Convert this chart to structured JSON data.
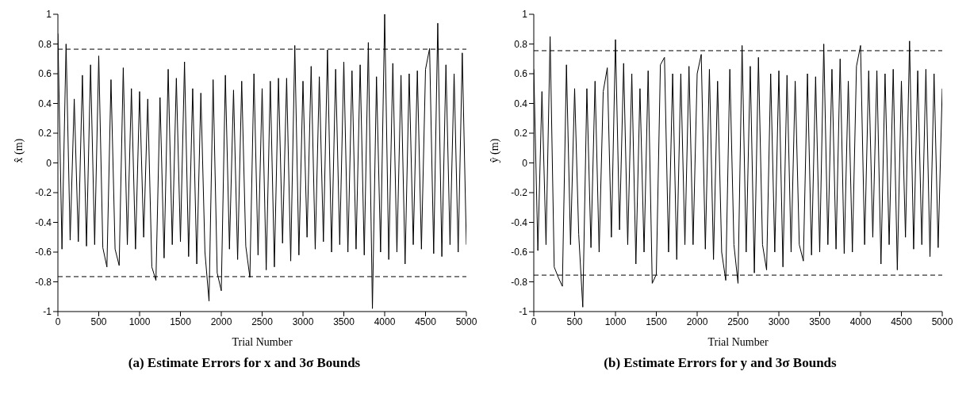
{
  "chart_data": [
    {
      "type": "line",
      "title": "(a) Estimate Errors for x and 3σ Bounds",
      "xlabel": "Trial Number",
      "ylabel": "x̂ (m)",
      "xlim": [
        0,
        5000
      ],
      "xticks": [
        0,
        500,
        1000,
        1500,
        2000,
        2500,
        3000,
        3500,
        4000,
        4500,
        5000
      ],
      "ylim": [
        -1,
        1
      ],
      "yticks": [
        -1,
        -0.8,
        -0.6,
        -0.4,
        -0.2,
        0,
        0.2,
        0.4,
        0.6,
        0.8,
        1
      ],
      "marker": "none",
      "line_style": "solid",
      "series": [
        {
          "color": "#000000",
          "x": [
            0,
            50,
            100,
            150,
            200,
            250,
            300,
            350,
            400,
            450,
            500,
            550,
            600,
            650,
            700,
            750,
            800,
            850,
            900,
            950,
            1000,
            1050,
            1100,
            1150,
            1200,
            1250,
            1300,
            1350,
            1400,
            1450,
            1500,
            1550,
            1600,
            1650,
            1700,
            1750,
            1800,
            1850,
            1900,
            1950,
            2000,
            2050,
            2100,
            2150,
            2200,
            2250,
            2300,
            2350,
            2400,
            2450,
            2500,
            2550,
            2600,
            2650,
            2700,
            2750,
            2800,
            2850,
            2900,
            2950,
            3000,
            3050,
            3100,
            3150,
            3200,
            3250,
            3300,
            3350,
            3400,
            3450,
            3500,
            3550,
            3600,
            3650,
            3700,
            3750,
            3800,
            3850,
            3900,
            3950,
            4000,
            4050,
            4100,
            4150,
            4200,
            4250,
            4300,
            4350,
            4400,
            4450,
            4500,
            4550,
            4600,
            4650,
            4700,
            4750,
            4800,
            4850,
            4900,
            4950,
            5000
          ],
          "values": [
            0.87,
            -0.58,
            0.8,
            -0.52,
            0.43,
            -0.53,
            0.59,
            -0.56,
            0.66,
            -0.55,
            0.72,
            -0.57,
            -0.7,
            0.56,
            -0.58,
            -0.69,
            0.64,
            -0.55,
            0.5,
            -0.58,
            0.48,
            -0.5,
            0.43,
            -0.7,
            -0.79,
            0.44,
            -0.64,
            0.63,
            -0.55,
            0.57,
            -0.53,
            0.68,
            -0.63,
            0.5,
            -0.68,
            0.47,
            -0.6,
            -0.93,
            0.56,
            -0.74,
            -0.86,
            0.59,
            -0.58,
            0.49,
            -0.65,
            0.55,
            -0.56,
            -0.77,
            0.6,
            -0.62,
            0.5,
            -0.72,
            0.55,
            -0.7,
            0.57,
            -0.54,
            0.57,
            -0.66,
            0.79,
            -0.62,
            0.55,
            -0.5,
            0.65,
            -0.58,
            0.58,
            -0.53,
            0.76,
            -0.6,
            0.63,
            -0.55,
            0.68,
            -0.6,
            0.62,
            -0.58,
            0.66,
            -0.62,
            0.81,
            -0.98,
            0.58,
            -0.6,
            1.0,
            -0.65,
            0.67,
            -0.6,
            0.59,
            -0.68,
            0.6,
            -0.55,
            0.62,
            -0.58,
            0.63,
            0.77,
            -0.61,
            0.94,
            -0.63,
            0.66,
            -0.55,
            0.6,
            -0.6,
            0.74,
            -0.55
          ]
        }
      ],
      "ref_lines": [
        {
          "axis": "y",
          "value": 0.765,
          "color": "#000000",
          "line_style": "dashed"
        },
        {
          "axis": "y",
          "value": -0.765,
          "color": "#000000",
          "line_style": "dashed"
        }
      ]
    },
    {
      "type": "line",
      "title": "(b) Estimate Errors for y and 3σ Bounds",
      "xlabel": "Trial Number",
      "ylabel": "ŷ (m)",
      "xlim": [
        0,
        5000
      ],
      "xticks": [
        0,
        500,
        1000,
        1500,
        2000,
        2500,
        3000,
        3500,
        4000,
        4500,
        5000
      ],
      "ylim": [
        -1,
        1
      ],
      "yticks": [
        -1,
        -0.8,
        -0.6,
        -0.4,
        -0.2,
        0,
        0.2,
        0.4,
        0.6,
        0.8,
        1
      ],
      "marker": "none",
      "line_style": "solid",
      "series": [
        {
          "color": "#000000",
          "x": [
            0,
            50,
            100,
            150,
            200,
            250,
            300,
            350,
            400,
            450,
            500,
            550,
            600,
            650,
            700,
            750,
            800,
            850,
            900,
            950,
            1000,
            1050,
            1100,
            1150,
            1200,
            1250,
            1300,
            1350,
            1400,
            1450,
            1500,
            1550,
            1600,
            1650,
            1700,
            1750,
            1800,
            1850,
            1900,
            1950,
            2000,
            2050,
            2100,
            2150,
            2200,
            2250,
            2300,
            2350,
            2400,
            2450,
            2500,
            2550,
            2600,
            2650,
            2700,
            2750,
            2800,
            2850,
            2900,
            2950,
            3000,
            3050,
            3100,
            3150,
            3200,
            3250,
            3300,
            3350,
            3400,
            3450,
            3500,
            3550,
            3600,
            3650,
            3700,
            3750,
            3800,
            3850,
            3900,
            3950,
            4000,
            4050,
            4100,
            4150,
            4200,
            4250,
            4300,
            4350,
            4400,
            4450,
            4500,
            4550,
            4600,
            4650,
            4700,
            4750,
            4800,
            4850,
            4900,
            4950,
            5000
          ],
          "values": [
            0.63,
            -0.59,
            0.48,
            -0.55,
            0.85,
            -0.7,
            -0.77,
            -0.83,
            0.66,
            -0.55,
            0.5,
            -0.48,
            -0.97,
            0.5,
            -0.57,
            0.55,
            -0.6,
            0.48,
            0.64,
            -0.5,
            0.83,
            -0.45,
            0.67,
            -0.55,
            0.6,
            -0.68,
            0.5,
            -0.6,
            0.62,
            -0.81,
            -0.75,
            0.66,
            0.71,
            -0.6,
            0.6,
            -0.65,
            0.6,
            -0.55,
            0.65,
            -0.55,
            0.6,
            0.73,
            -0.58,
            0.63,
            -0.65,
            0.55,
            -0.6,
            -0.79,
            0.63,
            -0.55,
            -0.81,
            0.79,
            -0.6,
            0.65,
            -0.74,
            0.71,
            -0.55,
            -0.72,
            0.6,
            -0.6,
            0.62,
            -0.7,
            0.59,
            -0.6,
            0.55,
            -0.55,
            -0.66,
            0.6,
            -0.62,
            0.58,
            -0.6,
            0.8,
            -0.55,
            0.63,
            -0.58,
            0.7,
            -0.61,
            0.55,
            -0.6,
            0.65,
            0.79,
            -0.55,
            0.62,
            -0.5,
            0.62,
            -0.68,
            0.6,
            -0.55,
            0.63,
            -0.72,
            0.55,
            -0.5,
            0.82,
            -0.58,
            0.62,
            -0.55,
            0.63,
            -0.63,
            0.6,
            -0.57,
            0.5
          ]
        }
      ],
      "ref_lines": [
        {
          "axis": "y",
          "value": 0.755,
          "color": "#000000",
          "line_style": "dashed"
        },
        {
          "axis": "y",
          "value": -0.755,
          "color": "#000000",
          "line_style": "dashed"
        }
      ]
    }
  ]
}
